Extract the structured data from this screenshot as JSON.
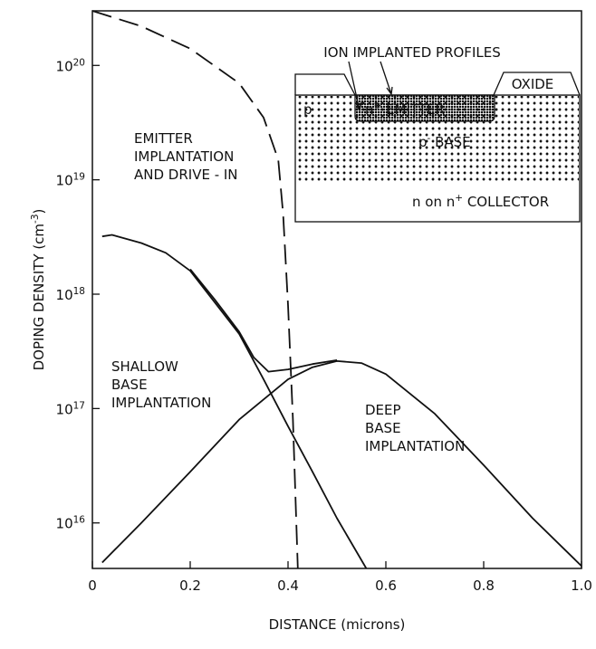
{
  "chart_data": {
    "type": "line",
    "xlabel": "DISTANCE  (microns)",
    "ylabel": "DOPING DENSITY (cm^{-3})",
    "log_y": true,
    "xlim": [
      0,
      1
    ],
    "ylim": [
      4000000000000000.0,
      3e+20
    ],
    "xticks": [
      0,
      0.2,
      0.4,
      0.6,
      0.8,
      {
        "value": 1,
        "label": "1.0"
      }
    ],
    "yticks": [
      {
        "value": 1e+16,
        "label": "10^{16}"
      },
      {
        "value": 1e+17,
        "label": "10^{17}"
      },
      {
        "value": 1e+18,
        "label": "10^{18}"
      },
      {
        "value": 1e+19,
        "label": "10^{19}"
      },
      {
        "value": 1e+20,
        "label": "10^{20}"
      }
    ],
    "series": [
      {
        "color": "#111111",
        "dashed": true,
        "x": [
          0,
          0.1,
          0.2,
          0.3,
          0.35,
          0.38,
          0.39,
          0.4,
          0.41,
          0.42
        ],
        "values": [
          3e+20,
          2.2e+20,
          1.4e+20,
          7e+19,
          3.5e+19,
          1.5e+19,
          5e+18,
          8e+17,
          8e+16,
          4000000000000000.0
        ]
      },
      {
        "color": "#111111",
        "dashed": false,
        "x": [
          0.02,
          0.04,
          0.1,
          0.15,
          0.2,
          0.25,
          0.3,
          0.35,
          0.4,
          0.45,
          0.5,
          0.56
        ],
        "values": [
          3.2e+18,
          3.3e+18,
          2.8e+18,
          2.3e+18,
          1.6e+18,
          8.5e+17,
          4.5e+17,
          1.8e+17,
          7e+16,
          2.8e+16,
          1.1e+16,
          4000000000000000.0
        ]
      },
      {
        "color": "#111111",
        "dashed": false,
        "x": [
          0.02,
          0.1,
          0.2,
          0.3,
          0.4,
          0.45,
          0.5,
          0.55,
          0.6,
          0.7,
          0.8,
          0.9,
          1.0
        ],
        "values": [
          4500000000000000.0,
          1e+16,
          2.8e+16,
          8e+16,
          1.8e+17,
          2.3e+17,
          2.6e+17,
          2.5e+17,
          2e+17,
          9e+16,
          3.2e+16,
          1.1e+16,
          4200000000000000.0
        ]
      },
      {
        "color": "#111111",
        "dashed": false,
        "x": [
          0.2,
          0.25,
          0.3,
          0.33,
          0.36,
          0.4,
          0.45,
          0.5
        ],
        "values": [
          1.65e+18,
          9e+17,
          4.7e+17,
          2.8e+17,
          2.1e+17,
          2.2e+17,
          2.45e+17,
          2.65e+17
        ]
      }
    ],
    "annotations": [
      [
        "EMITTER",
        "IMPLANTATION",
        "AND DRIVE - IN"
      ],
      [
        "SHALLOW",
        "BASE",
        "IMPLANTATION"
      ],
      [
        "DEEP",
        "BASE",
        "IMPLANTATION"
      ]
    ],
    "inset": {
      "title": "ION IMPLANTED PROFILES",
      "oxide": "OXIDE",
      "p_region": "p",
      "emitter": "n^{+} EMITTER",
      "base": "p^{-} BASE",
      "collector": "n on n^{+} COLLECTOR"
    }
  }
}
